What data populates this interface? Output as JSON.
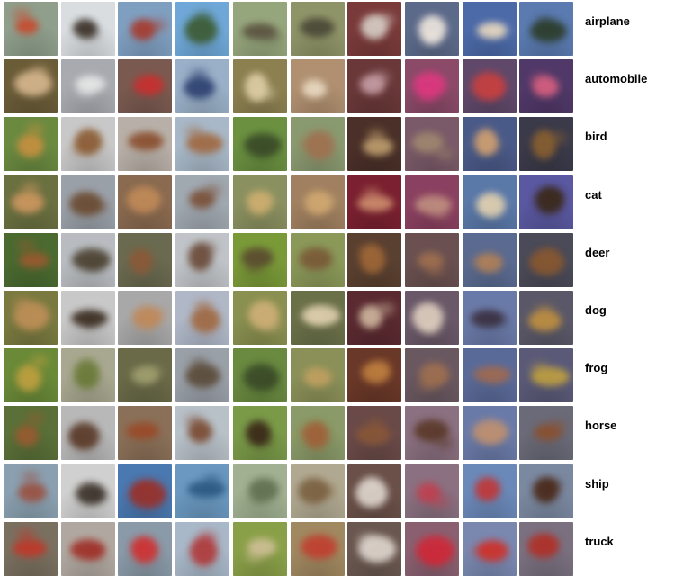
{
  "rows": [
    {
      "label": "airplane",
      "tiles": [
        {
          "bg": "#8f9f8c",
          "fg": "#c84a2e"
        },
        {
          "bg": "#d9dde0",
          "fg": "#3a3028"
        },
        {
          "bg": "#7f9fc0",
          "fg": "#a63a2c"
        },
        {
          "bg": "#6fa8d8",
          "fg": "#3c5a30"
        },
        {
          "bg": "#96a67c",
          "fg": "#5a5240"
        },
        {
          "bg": "#8f9468",
          "fg": "#4a4a38"
        },
        {
          "bg": "#7a3a3a",
          "fg": "#d8d0c8"
        },
        {
          "bg": "#5c6a8a",
          "fg": "#f0e8e0"
        },
        {
          "bg": "#4c6aa8",
          "fg": "#e8d8c0"
        },
        {
          "bg": "#5a7ab0",
          "fg": "#2c3c28"
        }
      ]
    },
    {
      "label": "automobile",
      "tiles": [
        {
          "bg": "#6b5c38",
          "fg": "#d8b890"
        },
        {
          "bg": "#a8aab0",
          "fg": "#e8e8e8"
        },
        {
          "bg": "#7a5a50",
          "fg": "#c83030"
        },
        {
          "bg": "#9ab0c8",
          "fg": "#2c4070"
        },
        {
          "bg": "#8c8050",
          "fg": "#e0d0a8"
        },
        {
          "bg": "#b09070",
          "fg": "#e8d8c0"
        },
        {
          "bg": "#6a3838",
          "fg": "#c8a0a8"
        },
        {
          "bg": "#8a4a68",
          "fg": "#e03880"
        },
        {
          "bg": "#60486a",
          "fg": "#c84040"
        },
        {
          "bg": "#503868",
          "fg": "#d86080"
        }
      ]
    },
    {
      "label": "bird",
      "tiles": [
        {
          "bg": "#6a8a40",
          "fg": "#c89040"
        },
        {
          "bg": "#c8c8c8",
          "fg": "#8a5a30"
        },
        {
          "bg": "#b8b0a8",
          "fg": "#8a5030"
        },
        {
          "bg": "#a8b8c8",
          "fg": "#a06840"
        },
        {
          "bg": "#6a9040",
          "fg": "#3a4a28"
        },
        {
          "bg": "#8a9a70",
          "fg": "#a07050"
        },
        {
          "bg": "#4a3028",
          "fg": "#c0a070"
        },
        {
          "bg": "#7a5a68",
          "fg": "#a08870"
        },
        {
          "bg": "#4a5a88",
          "fg": "#d0a070"
        },
        {
          "bg": "#3a3a4a",
          "fg": "#8a6030"
        }
      ]
    },
    {
      "label": "cat",
      "tiles": [
        {
          "bg": "#6a7040",
          "fg": "#d09860"
        },
        {
          "bg": "#9aa0a8",
          "fg": "#6a4a30"
        },
        {
          "bg": "#8a6a50",
          "fg": "#c08a58"
        },
        {
          "bg": "#a0a8b0",
          "fg": "#7a5038"
        },
        {
          "bg": "#8a9060",
          "fg": "#d0b070"
        },
        {
          "bg": "#a08060",
          "fg": "#d0a870"
        },
        {
          "bg": "#7a2030",
          "fg": "#d09070"
        },
        {
          "bg": "#8a4060",
          "fg": "#c09080"
        },
        {
          "bg": "#5a78a8",
          "fg": "#e0d0b0"
        },
        {
          "bg": "#5a58a0",
          "fg": "#3a2818"
        }
      ]
    },
    {
      "label": "deer",
      "tiles": [
        {
          "bg": "#4a6a30",
          "fg": "#9a5a30"
        },
        {
          "bg": "#b8bcc0",
          "fg": "#4a4030"
        },
        {
          "bg": "#6a6a50",
          "fg": "#8a5a38"
        },
        {
          "bg": "#c0c4c8",
          "fg": "#6a4a38"
        },
        {
          "bg": "#7a9a38",
          "fg": "#5a4a30"
        },
        {
          "bg": "#8a9858",
          "fg": "#7a5a38"
        },
        {
          "bg": "#5a4030",
          "fg": "#a06838"
        },
        {
          "bg": "#6a5050",
          "fg": "#a07050"
        },
        {
          "bg": "#5a6a90",
          "fg": "#b08058"
        },
        {
          "bg": "#4a4a58",
          "fg": "#8a5830"
        }
      ]
    },
    {
      "label": "dog",
      "tiles": [
        {
          "bg": "#7a7a40",
          "fg": "#c09058"
        },
        {
          "bg": "#c8c8c8",
          "fg": "#3a2c20"
        },
        {
          "bg": "#a8a8a8",
          "fg": "#c08858"
        },
        {
          "bg": "#b0b8c8",
          "fg": "#a06840"
        },
        {
          "bg": "#8a9050",
          "fg": "#d0b078"
        },
        {
          "bg": "#6a7048",
          "fg": "#e0d0b0"
        },
        {
          "bg": "#5a2a30",
          "fg": "#d0b8a0"
        },
        {
          "bg": "#6a5868",
          "fg": "#e0d0c0"
        },
        {
          "bg": "#6a7aa8",
          "fg": "#3a3040"
        },
        {
          "bg": "#5a5868",
          "fg": "#c09040"
        }
      ]
    },
    {
      "label": "frog",
      "tiles": [
        {
          "bg": "#6a8a38",
          "fg": "#c0a040"
        },
        {
          "bg": "#a8a890",
          "fg": "#6a7a38"
        },
        {
          "bg": "#6a6a48",
          "fg": "#a0a070"
        },
        {
          "bg": "#9aa0a8",
          "fg": "#5a4a38"
        },
        {
          "bg": "#6a8a40",
          "fg": "#3a4a28"
        },
        {
          "bg": "#8a9058",
          "fg": "#c0a060"
        },
        {
          "bg": "#6a3828",
          "fg": "#c08040"
        },
        {
          "bg": "#6a5860",
          "fg": "#a07050"
        },
        {
          "bg": "#5a6a98",
          "fg": "#a06a50"
        },
        {
          "bg": "#5a5a78",
          "fg": "#c0a040"
        }
      ]
    },
    {
      "label": "horse",
      "tiles": [
        {
          "bg": "#5a7038",
          "fg": "#9a5a30"
        },
        {
          "bg": "#b8b8b8",
          "fg": "#5a3a28"
        },
        {
          "bg": "#8a7058",
          "fg": "#9a4a28"
        },
        {
          "bg": "#b8c0c8",
          "fg": "#7a4a30"
        },
        {
          "bg": "#7a9a48",
          "fg": "#3a2818"
        },
        {
          "bg": "#8a9a68",
          "fg": "#a06038"
        },
        {
          "bg": "#6a4a48",
          "fg": "#8a5838"
        },
        {
          "bg": "#8a7080",
          "fg": "#5a3828"
        },
        {
          "bg": "#6a7aa8",
          "fg": "#c09070"
        },
        {
          "bg": "#6a6a78",
          "fg": "#8a5030"
        }
      ]
    },
    {
      "label": "ship",
      "tiles": [
        {
          "bg": "#8aa0b0",
          "fg": "#9a5040"
        },
        {
          "bg": "#d0d0d0",
          "fg": "#3a3028"
        },
        {
          "bg": "#4a78b0",
          "fg": "#9a3028"
        },
        {
          "bg": "#6a98c0",
          "fg": "#2a5880"
        },
        {
          "bg": "#a0b090",
          "fg": "#607050"
        },
        {
          "bg": "#b0a890",
          "fg": "#7a6040"
        },
        {
          "bg": "#6a5048",
          "fg": "#e0d8d0"
        },
        {
          "bg": "#8a7080",
          "fg": "#c04050"
        },
        {
          "bg": "#6a88b8",
          "fg": "#c03838"
        },
        {
          "bg": "#7a88a0",
          "fg": "#4a2818"
        }
      ]
    },
    {
      "label": "truck",
      "tiles": [
        {
          "bg": "#7a7060",
          "fg": "#c03828"
        },
        {
          "bg": "#b0a8a0",
          "fg": "#a03028"
        },
        {
          "bg": "#8a9aa8",
          "fg": "#d03030"
        },
        {
          "bg": "#a8b8c8",
          "fg": "#b03838"
        },
        {
          "bg": "#8aa048",
          "fg": "#d0c098"
        },
        {
          "bg": "#a08860",
          "fg": "#c04030"
        },
        {
          "bg": "#6a5850",
          "fg": "#e0d8d0"
        },
        {
          "bg": "#8a6070",
          "fg": "#d02838"
        },
        {
          "bg": "#7a88b0",
          "fg": "#d03028"
        },
        {
          "bg": "#7a7080",
          "fg": "#b03028"
        }
      ]
    }
  ]
}
